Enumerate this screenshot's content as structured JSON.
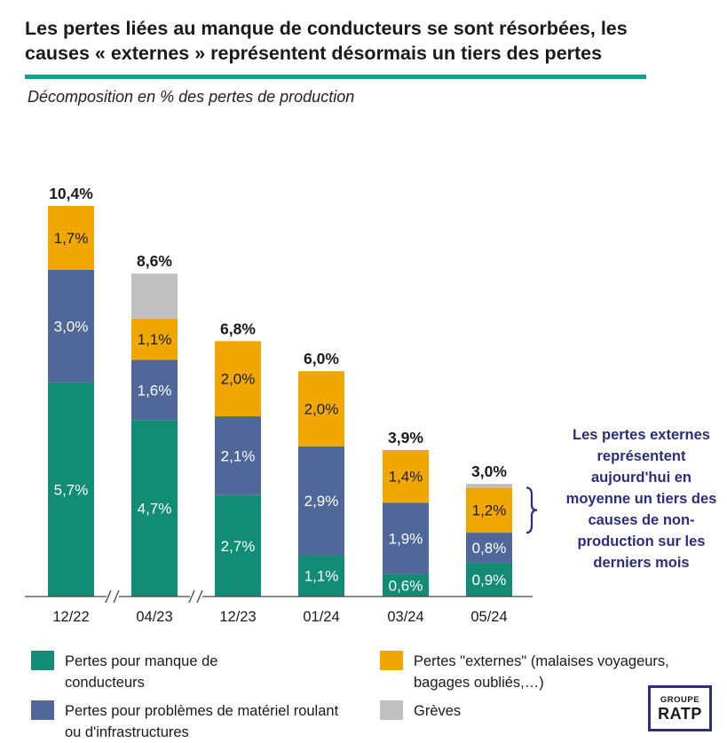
{
  "header": {
    "title": "Les pertes liées au manque de conducteurs se sont résorbées, les causes « externes » représentent désormais un tiers des pertes",
    "subtitle": "Décomposition en % des pertes de production"
  },
  "colors": {
    "drivers": "#128c74",
    "equipment": "#4f6899",
    "external": "#f0a800",
    "strikes": "#c0c0c0",
    "rule": "#14a08c",
    "callout": "#2b2d80"
  },
  "chart_data": {
    "type": "bar",
    "stacked": true,
    "categories": [
      "12/22",
      "04/23",
      "12/23",
      "01/24",
      "03/24",
      "05/24"
    ],
    "series": [
      {
        "name": "Pertes pour manque de conducteurs",
        "key": "drivers",
        "values": [
          5.7,
          4.7,
          2.7,
          1.1,
          0.6,
          0.9
        ],
        "labels": [
          "5,7%",
          "4,7%",
          "2,7%",
          "1,1%",
          "0,6%",
          "0,9%"
        ]
      },
      {
        "name": "Pertes pour problèmes de matériel roulant ou d'infrastructures",
        "key": "equipment",
        "values": [
          3.0,
          1.6,
          2.1,
          2.9,
          1.9,
          0.8
        ],
        "labels": [
          "3,0%",
          "1,6%",
          "2,1%",
          "2,9%",
          "1,9%",
          "0,8%"
        ]
      },
      {
        "name": "Pertes \"externes\" (malaises voyageurs, bagages oubliés,…)",
        "key": "external",
        "values": [
          1.7,
          1.1,
          2.0,
          2.0,
          1.4,
          1.2
        ],
        "labels": [
          "1,7%",
          "1,1%",
          "2,0%",
          "2,0%",
          "1,4%",
          "1,2%"
        ]
      },
      {
        "name": "Grèves",
        "key": "strikes",
        "values": [
          0.0,
          1.2,
          0.0,
          0.0,
          0.0,
          0.1
        ],
        "labels": [
          "",
          "",
          "",
          "",
          "",
          ""
        ]
      }
    ],
    "totals": [
      10.4,
      8.6,
      6.8,
      6.0,
      3.9,
      3.0
    ],
    "total_labels": [
      "10,4%",
      "8,6%",
      "6,8%",
      "6,0%",
      "3,9%",
      "3,0%"
    ],
    "axis_breaks_after": [
      "12/22",
      "04/23"
    ],
    "ylim": [
      0,
      10.4
    ],
    "grid": false,
    "legend_position": "bottom"
  },
  "callout": {
    "text": "Les pertes externes représentent aujourd'hui en moyenne un tiers des causes de non-production sur les derniers mois",
    "bracket_target": "05/24"
  },
  "legend": {
    "drivers_line1": "Pertes pour manque de",
    "drivers_line2": "conducteurs",
    "equipment_line1": "Pertes pour problèmes de matériel roulant",
    "equipment_line2": "ou d'infrastructures",
    "external_line1": "Pertes \"externes\" (malaises voyageurs,",
    "external_line2": "bagages oubliés,…)",
    "strikes_line1": "Grèves"
  },
  "logo": {
    "top": "GROUPE",
    "main": "RATP"
  }
}
